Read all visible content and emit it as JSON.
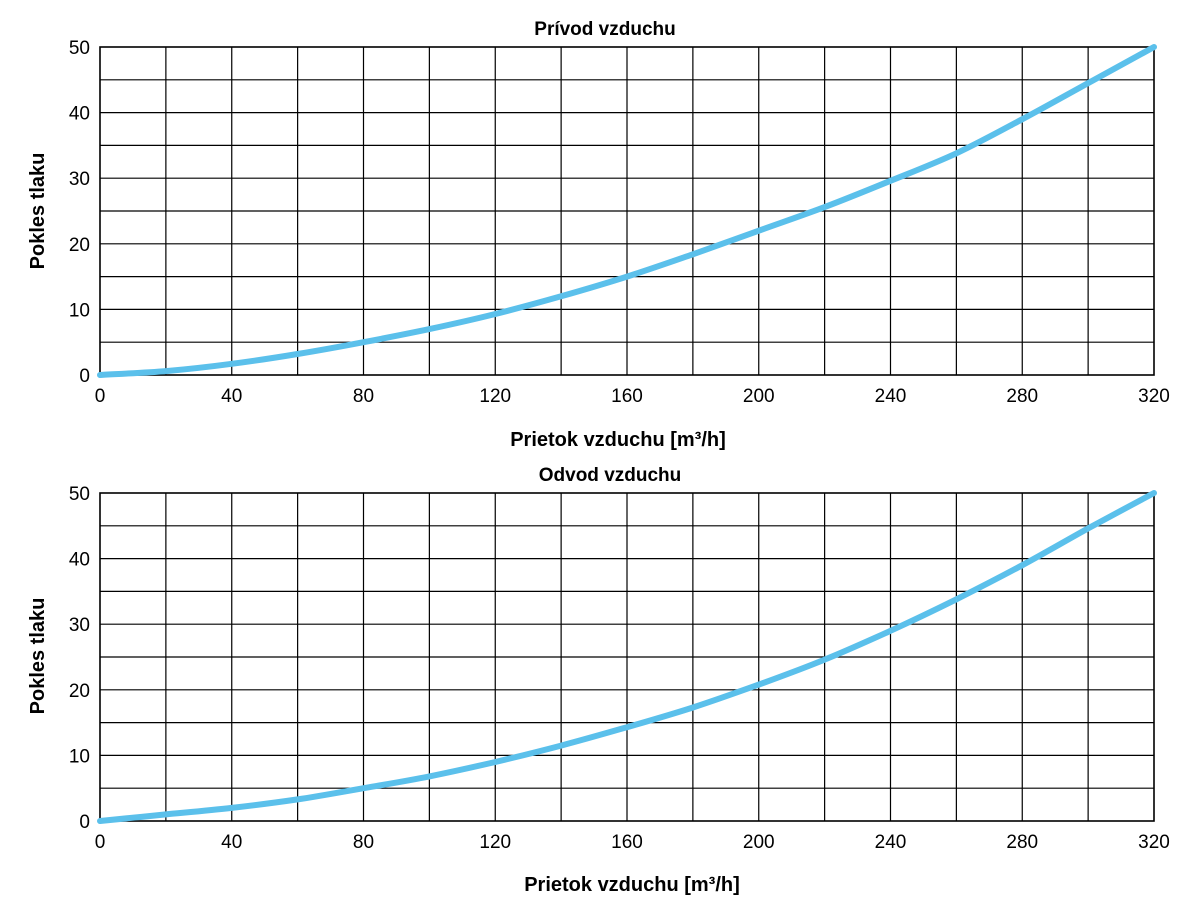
{
  "colors": {
    "curve": "#5bc0eb",
    "grid": "#000000",
    "background": "#ffffff"
  },
  "chart_data": [
    {
      "type": "line",
      "title": "Prívod vzduchu",
      "xlabel": "Prietok vzduchu [m³/h]",
      "ylabel": "Pokles tlaku",
      "xlim": [
        0,
        320
      ],
      "ylim": [
        0,
        50
      ],
      "x_ticks": [
        0,
        40,
        80,
        120,
        160,
        200,
        240,
        280,
        320
      ],
      "y_ticks": [
        0,
        10,
        20,
        30,
        40,
        50
      ],
      "x_tick_labels": [
        "0",
        "40",
        "80",
        "120",
        "160",
        "200",
        "240",
        "280",
        "320"
      ],
      "y_tick_labels": [
        "0",
        "10",
        "20",
        "30",
        "40",
        "50"
      ],
      "x_grid_step": 20,
      "y_grid_step": 5,
      "series": [
        {
          "name": "Prívod vzduchu",
          "x": [
            0,
            20,
            40,
            60,
            80,
            100,
            120,
            140,
            160,
            180,
            200,
            220,
            240,
            260,
            280,
            300,
            320
          ],
          "y": [
            0,
            0.6,
            1.7,
            3.2,
            5,
            7,
            9.3,
            12,
            15,
            18.4,
            22,
            25.6,
            29.6,
            33.8,
            39,
            44.5,
            50
          ]
        }
      ]
    },
    {
      "type": "line",
      "title": "Odvod vzduchu",
      "xlabel": "Prietok vzduchu [m³/h]",
      "ylabel": "Pokles tlaku",
      "xlim": [
        0,
        320
      ],
      "ylim": [
        0,
        50
      ],
      "x_ticks": [
        0,
        40,
        80,
        120,
        160,
        200,
        240,
        280,
        320
      ],
      "y_ticks": [
        0,
        10,
        20,
        30,
        40,
        50
      ],
      "x_tick_labels": [
        "0",
        "40",
        "80",
        "120",
        "160",
        "200",
        "240",
        "280",
        "320"
      ],
      "y_tick_labels": [
        "0",
        "10",
        "20",
        "30",
        "40",
        "50"
      ],
      "x_grid_step": 20,
      "y_grid_step": 5,
      "series": [
        {
          "name": "Odvod vzduchu",
          "x": [
            0,
            20,
            40,
            60,
            80,
            100,
            120,
            140,
            160,
            180,
            200,
            220,
            240,
            260,
            280,
            300,
            320
          ],
          "y": [
            0,
            1,
            2,
            3.3,
            5,
            6.8,
            9,
            11.5,
            14.3,
            17.3,
            20.8,
            24.6,
            29,
            33.8,
            39,
            44.6,
            50
          ]
        }
      ]
    }
  ]
}
